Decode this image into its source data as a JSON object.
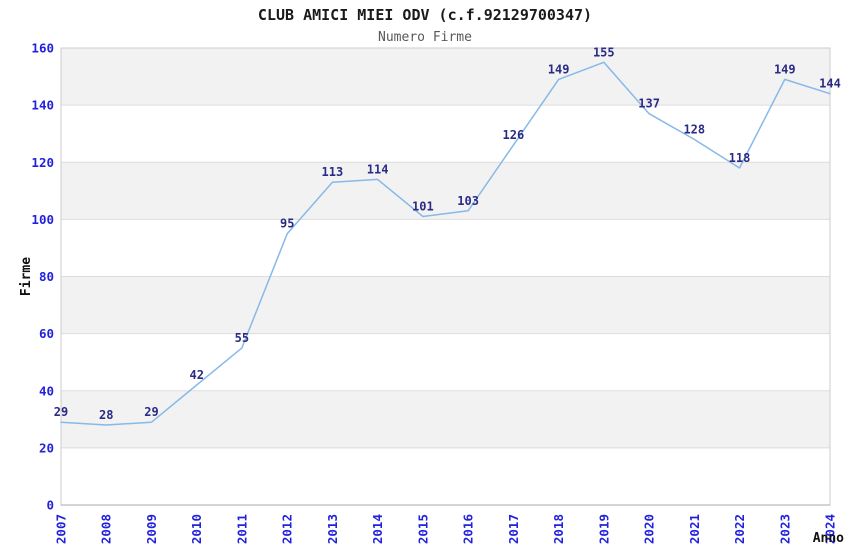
{
  "title": "CLUB AMICI MIEI ODV (c.f.92129700347)",
  "subtitle": "Numero Firme",
  "chart_data": {
    "type": "line",
    "x": [
      2007,
      2008,
      2009,
      2010,
      2011,
      2012,
      2013,
      2014,
      2015,
      2016,
      2017,
      2018,
      2019,
      2020,
      2021,
      2022,
      2023,
      2024
    ],
    "series": [
      {
        "name": "Numero Firme",
        "values": [
          29,
          28,
          29,
          42,
          55,
          95,
          113,
          114,
          101,
          103,
          126,
          149,
          155,
          137,
          128,
          118,
          149,
          144
        ]
      }
    ],
    "title": "CLUB AMICI MIEI ODV (c.f.92129700347)",
    "subtitle": "Numero Firme",
    "xlabel": "Anno",
    "ylabel": "Firme",
    "ylim": [
      0,
      160
    ],
    "ytick_step": 20,
    "yticks": [
      0,
      20,
      40,
      60,
      80,
      100,
      120,
      140,
      160
    ],
    "grid": "horizontal-alternating-bands",
    "legend_position": "none",
    "data_labels_visible": true,
    "markers": "none"
  },
  "colors": {
    "background": "#ffffff",
    "band_gray": "#f2f2f2",
    "band_white": "#ffffff",
    "gridline": "#dddddd",
    "plot_border": "#cccccc",
    "axis_line": "#aaaaaa",
    "series_line": "#87b9e8",
    "data_label": "#2b2b85",
    "tick_label": "#2222dd",
    "title": "#1a1a1a",
    "subtitle": "#595959",
    "axis_title": "#111111"
  }
}
